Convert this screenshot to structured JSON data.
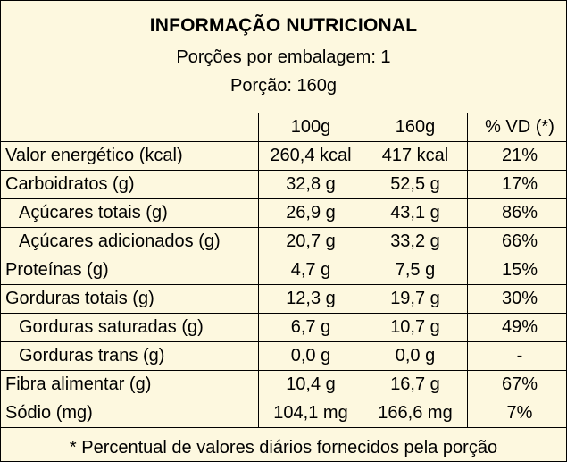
{
  "header": {
    "title": "INFORMAÇÃO NUTRICIONAL",
    "servings": "Porções por embalagem: 1",
    "portion": "Porção: 160g"
  },
  "table": {
    "columns": [
      "",
      "100g",
      "160g",
      "% VD (*)"
    ],
    "rows": [
      {
        "label": "Valor energético (kcal)",
        "indent": false,
        "v100": "260,4 kcal",
        "v160": "417 kcal",
        "vd": "21%"
      },
      {
        "label": "Carboidratos (g)",
        "indent": false,
        "v100": "32,8 g",
        "v160": "52,5 g",
        "vd": "17%"
      },
      {
        "label": "Açúcares totais (g)",
        "indent": true,
        "v100": "26,9 g",
        "v160": "43,1 g",
        "vd": "86%"
      },
      {
        "label": "Açúcares adicionados (g)",
        "indent": true,
        "v100": "20,7 g",
        "v160": "33,2 g",
        "vd": "66%"
      },
      {
        "label": "Proteínas (g)",
        "indent": false,
        "v100": "4,7 g",
        "v160": "7,5 g",
        "vd": "15%"
      },
      {
        "label": "Gorduras totais (g)",
        "indent": false,
        "v100": "12,3 g",
        "v160": "19,7 g",
        "vd": "30%"
      },
      {
        "label": "Gorduras saturadas (g)",
        "indent": true,
        "v100": "6,7 g",
        "v160": "10,7 g",
        "vd": "49%"
      },
      {
        "label": "Gorduras trans (g)",
        "indent": true,
        "v100": "0,0 g",
        "v160": "0,0 g",
        "vd": "-"
      },
      {
        "label": "Fibra alimentar (g)",
        "indent": false,
        "v100": "10,4 g",
        "v160": "16,7 g",
        "vd": "67%"
      },
      {
        "label": "Sódio (mg)",
        "indent": false,
        "v100": "104,1 mg",
        "v160": "166,6 mg",
        "vd": "7%"
      }
    ]
  },
  "footer": {
    "note": "* Percentual de valores diários fornecidos pela porção"
  },
  "colors": {
    "background": "#fdf8df",
    "border": "#000000"
  }
}
